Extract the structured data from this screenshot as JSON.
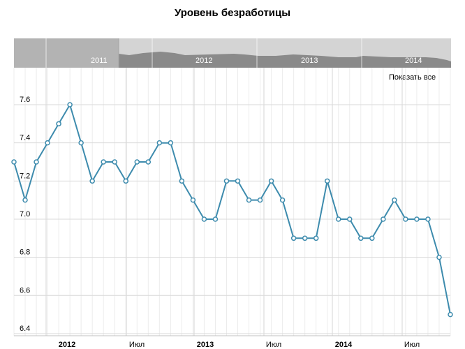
{
  "chart_data": {
    "type": "line",
    "title": "Уровень безработицы",
    "xlabel": "",
    "ylabel": "",
    "ylim": [
      6.4,
      7.7
    ],
    "y_ticks": [
      "6.4",
      "6.6",
      "6.8",
      "7.0",
      "7.2",
      "7.4",
      "7.6"
    ],
    "x_tick_labels": [
      {
        "label": "2012",
        "bold": true
      },
      {
        "label": "Июл",
        "bold": false
      },
      {
        "label": "2013",
        "bold": true
      },
      {
        "label": "Июл",
        "bold": false
      },
      {
        "label": "2014",
        "bold": true
      },
      {
        "label": "Июл",
        "bold": false
      }
    ],
    "series": [
      {
        "color": "#3d8bad",
        "values": [
          7.3,
          7.1,
          7.3,
          7.4,
          7.5,
          7.6,
          7.4,
          7.2,
          7.3,
          7.3,
          7.2,
          7.3,
          7.3,
          7.4,
          7.4,
          7.2,
          7.1,
          7.0,
          7.0,
          7.2,
          7.2,
          7.1,
          7.1,
          7.2,
          7.1,
          6.9,
          6.9,
          6.9,
          7.2,
          7.0,
          7.0,
          6.9,
          6.9,
          7.0,
          7.1,
          7.0,
          7.0,
          7.0,
          6.8,
          6.5
        ]
      }
    ],
    "grid": true,
    "navigator": {
      "labels": [
        "2011",
        "2012",
        "2013",
        "2014"
      ]
    }
  },
  "controls": {
    "show_all": "Показать все"
  }
}
